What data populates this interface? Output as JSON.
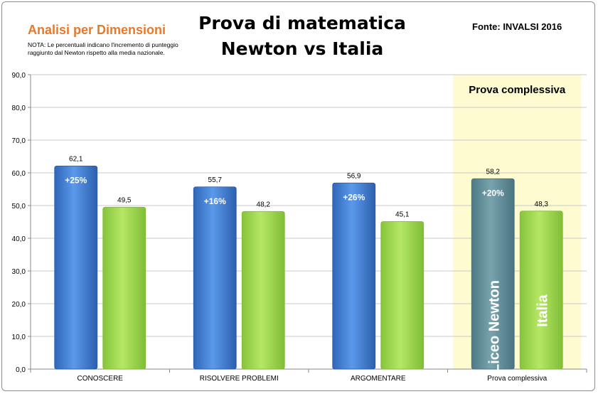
{
  "header": {
    "title_line1": "Prova di matematica",
    "title_line2": "Newton vs Italia",
    "subtitle": "Analisi per Dimensioni",
    "note": "NOTA: Le percentuali indicano l'incremento di punteggio raggiunto dal Newton rispetto alla media nazionale.",
    "source": "Fonte: INVALSI 2016"
  },
  "colors": {
    "newton": "#3f7fd6",
    "newton_highlight": "#5f8f9a",
    "italia": "#9fd94a",
    "highlight_band": "#fdfbcf",
    "grid": "#c8c8c8"
  },
  "chart_data": {
    "type": "bar",
    "categories": [
      "CONOSCERE",
      "RISOLVERE PROBLEMI",
      "ARGOMENTARE",
      "Prova complessiva"
    ],
    "series": [
      {
        "name": "Liceo Newton",
        "values": [
          62.1,
          55.7,
          56.9,
          58.2
        ],
        "labels": [
          "62,1",
          "55,7",
          "56,9",
          "58,2"
        ]
      },
      {
        "name": "Italia",
        "values": [
          49.5,
          48.2,
          45.1,
          48.3
        ],
        "labels": [
          "49,5",
          "48,2",
          "45,1",
          "48,3"
        ]
      }
    ],
    "increments": [
      "+25%",
      "+16%",
      "+26%",
      "+20%"
    ],
    "ylim": [
      0,
      90
    ],
    "yticks": [
      0,
      10,
      20,
      30,
      40,
      50,
      60,
      70,
      80,
      90
    ],
    "ytick_labels": [
      "0,0",
      "10,0",
      "20,0",
      "30,0",
      "40,0",
      "50,0",
      "60,0",
      "70,0",
      "80,0",
      "90,0"
    ],
    "highlight_label": "Prova complessiva",
    "highlight_index": 3,
    "grid": true,
    "legend": "inside-last-group"
  }
}
